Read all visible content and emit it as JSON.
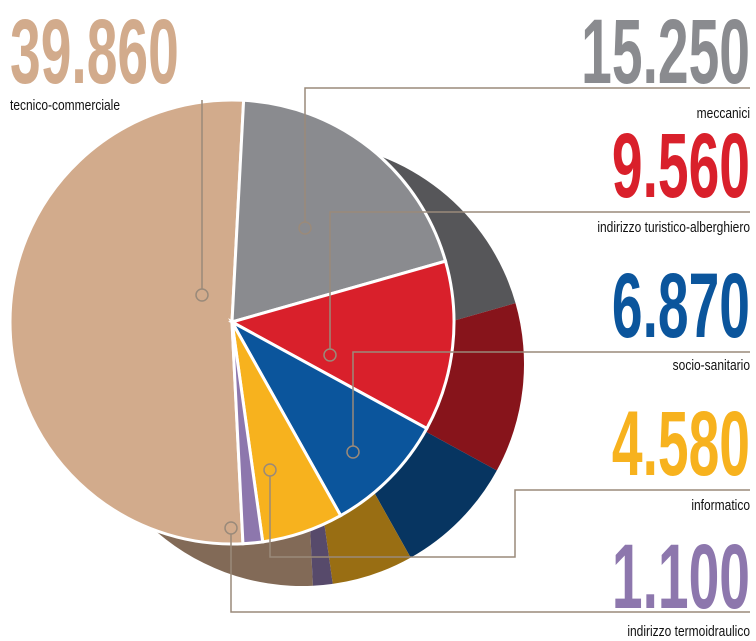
{
  "chart_data": {
    "type": "pie",
    "categories": [
      "tecnico-commerciale",
      "meccanici",
      "indirizzo turistico-alberghiero",
      "socio-sanitario",
      "informatico",
      "indirizzo termoidraulico"
    ],
    "values": [
      39860,
      15250,
      9560,
      6870,
      4580,
      1100
    ],
    "value_labels": [
      "39.860",
      "15.250",
      "9.560",
      "6.870",
      "4.580",
      "1.100"
    ],
    "colors": [
      "#d2ab8c",
      "#8a8b8f",
      "#d9202b",
      "#0b559c",
      "#f7b21e",
      "#8d77ad"
    ]
  }
}
